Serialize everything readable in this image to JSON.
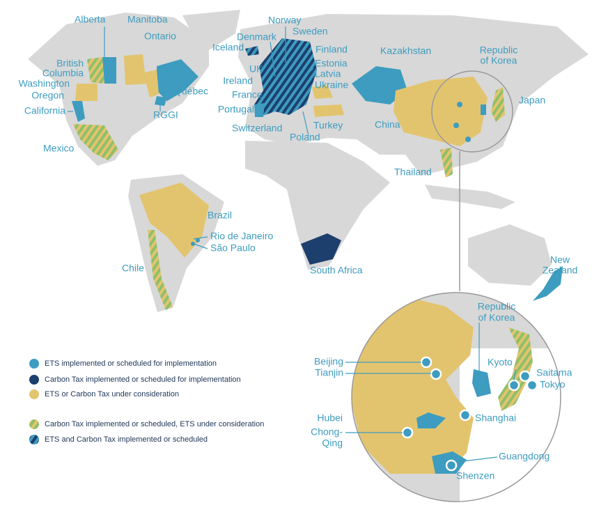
{
  "map_labels": {
    "alberta": "Alberta",
    "manitoba": "Manitoba",
    "ontario": "Ontario",
    "british_columbia": [
      "British",
      "Columbia"
    ],
    "washington": "Washington",
    "oregon": "Oregon",
    "california": "California",
    "quebec": "Québec",
    "rggi": "RGGI",
    "mexico": "Mexico",
    "iceland": "Iceland",
    "norway": "Norway",
    "denmark": "Denmark",
    "sweden": "Sweden",
    "finland": "Finland",
    "uk": "UK",
    "estonia": "Estonia",
    "latvia": "Latvia",
    "ireland": "Ireland",
    "ukraine": "Ukraine",
    "france": "France",
    "portugal": "Portugal",
    "switzerland": "Switzerland",
    "turkey": "Turkey",
    "poland": "Poland",
    "kazakhstan": "Kazakhstan",
    "republic_of_korea": [
      "Republic",
      "of Korea"
    ],
    "japan": "Japan",
    "china": "China",
    "thailand": "Thailand",
    "brazil": "Brazil",
    "rio_de_janeiro": "Rio de Janeiro",
    "sao_paulo": "São Paulo",
    "chile": "Chile",
    "south_africa": "South Africa",
    "new_zealand": [
      "New",
      "Zealand"
    ]
  },
  "inset_labels": {
    "republic_of_korea": [
      "Republic",
      "of Korea"
    ],
    "beijing": "Beijing",
    "tianjin": "Tianjin",
    "kyoto": "Kyoto",
    "saitama": "Saitama",
    "tokyo": "Tokyo",
    "shanghai": "Shanghai",
    "hubei": "Hubei",
    "chong_qing": [
      "Chong-",
      "Qing"
    ],
    "guangdong": "Guangdong",
    "shenzen": "Shenzen"
  },
  "legend": {
    "items": [
      "ETS implemented or scheduled for implementation",
      "Carbon Tax implemented or scheduled for implementation",
      "ETS or Carbon Tax under consideration",
      "Carbon Tax implemented or scheduled, ETS under consideration",
      "ETS and Carbon Tax implemented or scheduled"
    ]
  }
}
